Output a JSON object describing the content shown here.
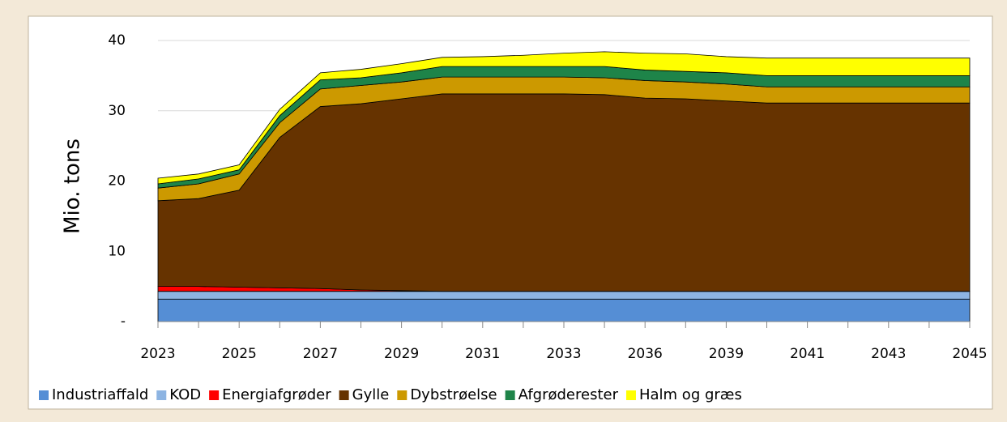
{
  "chart_data": {
    "type": "stacked_area",
    "ylabel": "Mio. tons",
    "categories": [
      "2023",
      null,
      "2025",
      null,
      "2027",
      null,
      "2029",
      null,
      "2031",
      null,
      "2033",
      null,
      "2036",
      null,
      "2039",
      null,
      "2041",
      null,
      "2043",
      null,
      "2045"
    ],
    "series": [
      {
        "name": "Industriaffald",
        "color": "#558ed5",
        "values": [
          3.2,
          3.2,
          3.2,
          3.2,
          3.2,
          3.2,
          3.2,
          3.2,
          3.2,
          3.2,
          3.2,
          3.2,
          3.2,
          3.2,
          3.2,
          3.2,
          3.2,
          3.2,
          3.2,
          3.2,
          3.2
        ]
      },
      {
        "name": "KOD",
        "color": "#8db4e2",
        "values": [
          1.1,
          1.1,
          1.1,
          1.1,
          1.1,
          1.1,
          1.1,
          1.1,
          1.1,
          1.1,
          1.1,
          1.1,
          1.1,
          1.1,
          1.1,
          1.1,
          1.1,
          1.1,
          1.1,
          1.1,
          1.1
        ]
      },
      {
        "name": "Energiafgrøder",
        "color": "#ff0000",
        "values": [
          0.7,
          0.7,
          0.6,
          0.5,
          0.4,
          0.2,
          0.1,
          0,
          0,
          0,
          0,
          0,
          0,
          0,
          0,
          0,
          0,
          0,
          0,
          0,
          0
        ]
      },
      {
        "name": "Gylle",
        "color": "#663300",
        "values": [
          12.2,
          12.5,
          13.8,
          21.4,
          25.9,
          26.5,
          27.3,
          28.1,
          28.1,
          28.1,
          28.1,
          28.0,
          27.5,
          27.4,
          27.1,
          26.8,
          26.8,
          26.8,
          26.8,
          26.8,
          26.8
        ]
      },
      {
        "name": "Dybstrøelse",
        "color": "#cc9900",
        "values": [
          1.8,
          2.1,
          2.3,
          2.1,
          2.5,
          2.6,
          2.4,
          2.4,
          2.4,
          2.4,
          2.4,
          2.4,
          2.5,
          2.4,
          2.4,
          2.3,
          2.3,
          2.3,
          2.3,
          2.3,
          2.3
        ]
      },
      {
        "name": "Afgrøderester",
        "color": "#1e8449",
        "values": [
          0.6,
          0.7,
          0.6,
          1.0,
          1.3,
          1.1,
          1.3,
          1.5,
          1.5,
          1.5,
          1.5,
          1.6,
          1.5,
          1.5,
          1.6,
          1.6,
          1.6,
          1.6,
          1.6,
          1.6,
          1.6
        ]
      },
      {
        "name": "Halm og græs",
        "color": "#ffff00",
        "values": [
          0.8,
          0.7,
          0.7,
          0.9,
          1.0,
          1.2,
          1.3,
          1.3,
          1.4,
          1.6,
          1.9,
          2.1,
          2.4,
          2.5,
          2.3,
          2.5,
          2.5,
          2.5,
          2.5,
          2.5,
          2.5
        ]
      }
    ],
    "ylim": [
      0,
      40
    ],
    "yticks": [
      {
        "value": 0,
        "label": "-"
      },
      10,
      20,
      30,
      40
    ],
    "grid": true
  }
}
